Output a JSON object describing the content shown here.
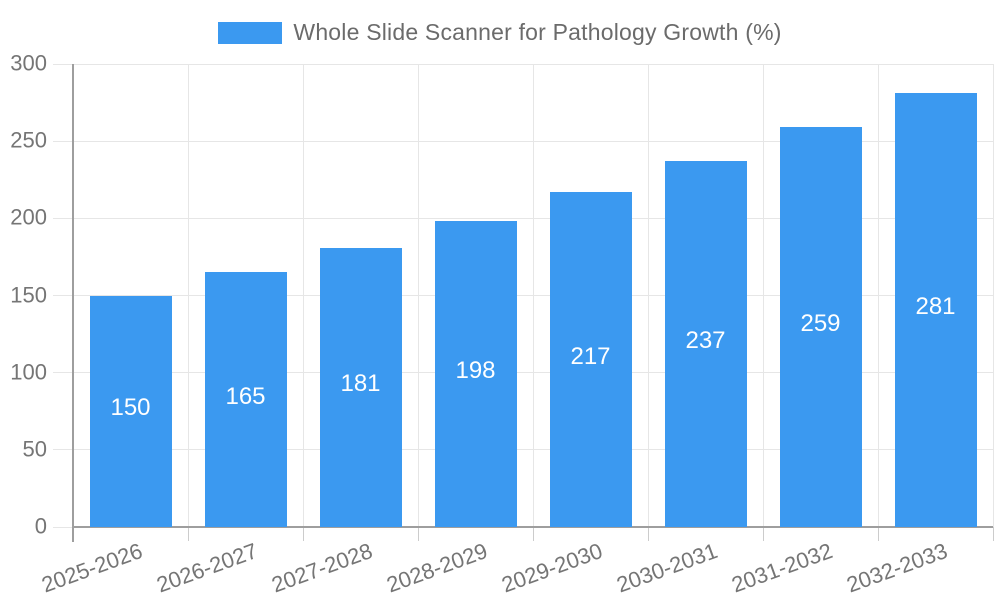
{
  "chart_data": {
    "type": "bar",
    "title": "",
    "legend": "Whole Slide Scanner for Pathology Growth (%)",
    "legend_position": "top",
    "categories": [
      "2025-2026",
      "2026-2027",
      "2027-2028",
      "2028-2029",
      "2029-2030",
      "2030-2031",
      "2031-2032",
      "2032-2033"
    ],
    "values": [
      150,
      165,
      181,
      198,
      217,
      237,
      259,
      281
    ],
    "xlabel": "",
    "ylabel": "",
    "ylim": [
      0,
      300
    ],
    "yticks": [
      0,
      50,
      100,
      150,
      200,
      250,
      300
    ],
    "grid": true,
    "x_label_rotation_deg": -20,
    "value_labels": "inside-center-white",
    "colors": {
      "bar": "#3B99F0",
      "axis": "#9E9E9E",
      "gridline": "#E6E6E6",
      "x_tick": "#CCCCCC",
      "tick_text": "#757575",
      "legend_text": "#6B6B6B",
      "value_label": "#FFFFFF",
      "background": "#FFFFFF"
    }
  }
}
